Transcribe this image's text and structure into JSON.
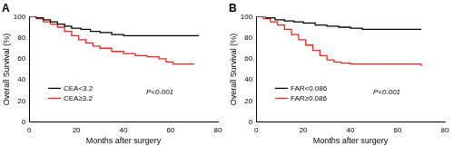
{
  "chart_data": [
    {
      "type": "line",
      "title": "A",
      "x_label": "Months after surgery",
      "y_label": "Overall Survival (%)",
      "xlim": [
        0,
        80
      ],
      "xticks": [
        0,
        20,
        40,
        60,
        80
      ],
      "ylim": [
        0,
        100
      ],
      "yticks": [
        0,
        20,
        40,
        60,
        80,
        100
      ],
      "grid": false,
      "legend": "lower left",
      "annotations": [
        "P<0.001"
      ],
      "series": [
        {
          "name": "CEA<3.2",
          "color": "#000000",
          "line_style": "step",
          "x": [
            0,
            3,
            6,
            9,
            12,
            15,
            18,
            22,
            26,
            30,
            35,
            40,
            72
          ],
          "values": [
            100,
            99,
            97,
            95,
            93,
            91,
            89,
            88,
            86,
            85,
            83,
            82,
            82
          ]
        },
        {
          "name": "CEA≥3.2",
          "color": "#e8281e",
          "line_style": "step",
          "x": [
            0,
            3,
            6,
            9,
            12,
            15,
            18,
            21,
            24,
            27,
            30,
            35,
            40,
            45,
            50,
            55,
            58,
            61,
            70
          ],
          "values": [
            100,
            98,
            95,
            93,
            90,
            86,
            82,
            78,
            75,
            72,
            70,
            67,
            65,
            63,
            62,
            60,
            57,
            55,
            55
          ]
        }
      ]
    },
    {
      "type": "line",
      "title": "B",
      "x_label": "Months after surgery",
      "y_label": "Overall Survival (%)",
      "xlim": [
        0,
        80
      ],
      "xticks": [
        0,
        20,
        40,
        60,
        80
      ],
      "ylim": [
        0,
        100
      ],
      "yticks": [
        0,
        20,
        40,
        60,
        80,
        100
      ],
      "grid": false,
      "legend": "lower left",
      "annotations": [
        "P<0.001"
      ],
      "series": [
        {
          "name": "FAR<0.086",
          "color": "#000000",
          "line_style": "step",
          "x": [
            0,
            4,
            8,
            12,
            16,
            20,
            25,
            30,
            35,
            40,
            45,
            50,
            70
          ],
          "values": [
            100,
            99,
            97,
            96,
            95,
            94,
            92,
            91,
            90,
            89,
            88,
            88,
            88
          ]
        },
        {
          "name": "FAR≥0.086",
          "color": "#e8281e",
          "line_style": "step",
          "x": [
            0,
            3,
            6,
            9,
            12,
            15,
            18,
            21,
            24,
            27,
            30,
            33,
            36,
            40,
            66,
            70
          ],
          "values": [
            100,
            98,
            95,
            92,
            88,
            83,
            78,
            73,
            68,
            63,
            59,
            57,
            56,
            55,
            55,
            53
          ]
        }
      ]
    }
  ]
}
